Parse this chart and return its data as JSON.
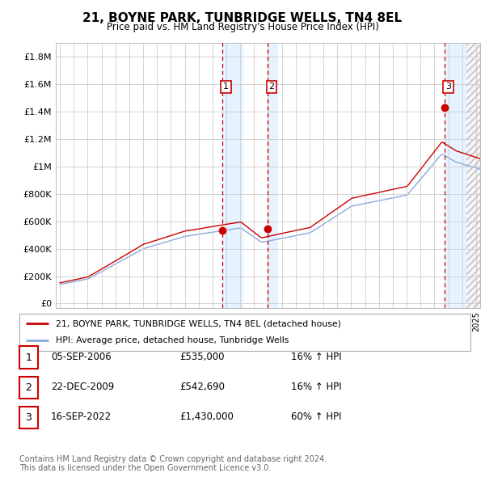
{
  "title": "21, BOYNE PARK, TUNBRIDGE WELLS, TN4 8EL",
  "subtitle": "Price paid vs. HM Land Registry's House Price Index (HPI)",
  "background_color": "#ffffff",
  "plot_bg_color": "#ffffff",
  "grid_color": "#cccccc",
  "line1_color": "#cc0000",
  "line2_color": "#88aadd",
  "sale_marker_color": "#cc0000",
  "vline_color": "#cc0000",
  "vspan_color": "#ddeeff",
  "yticks": [
    0,
    200000,
    400000,
    600000,
    800000,
    1000000,
    1200000,
    1400000,
    1600000,
    1800000
  ],
  "ytick_labels": [
    "£0",
    "£200K",
    "£400K",
    "£600K",
    "£800K",
    "£1M",
    "£1.2M",
    "£1.4M",
    "£1.6M",
    "£1.8M"
  ],
  "ymax": 1900000,
  "ymin": -30000,
  "xmin": 1994.7,
  "xmax": 2025.3,
  "sale1_x": 2006.68,
  "sale1_y": 535000,
  "sale2_x": 2009.97,
  "sale2_y": 542690,
  "sale3_x": 2022.71,
  "sale3_y": 1430000,
  "sale1_label": "1",
  "sale2_label": "2",
  "sale3_label": "3",
  "legend_line1": "21, BOYNE PARK, TUNBRIDGE WELLS, TN4 8EL (detached house)",
  "legend_line2": "HPI: Average price, detached house, Tunbridge Wells",
  "table_rows": [
    [
      "1",
      "05-SEP-2006",
      "£535,000",
      "16% ↑ HPI"
    ],
    [
      "2",
      "22-DEC-2009",
      "£542,690",
      "16% ↑ HPI"
    ],
    [
      "3",
      "16-SEP-2022",
      "£1,430,000",
      "60% ↑ HPI"
    ]
  ],
  "footer1": "Contains HM Land Registry data © Crown copyright and database right 2024.",
  "footer2": "This data is licensed under the Open Government Licence v3.0."
}
